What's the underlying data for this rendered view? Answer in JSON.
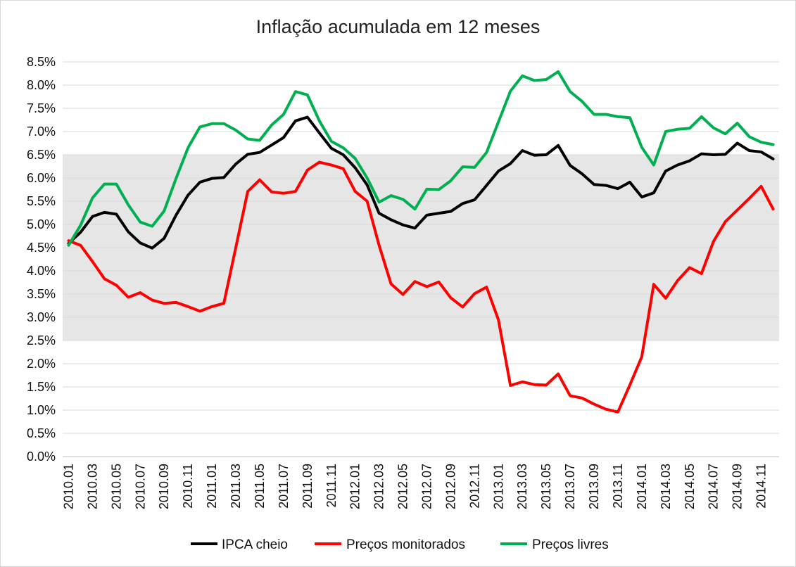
{
  "chart_data": {
    "type": "line",
    "title": "Inflação acumulada em 12 meses",
    "xlabel": "",
    "ylabel": "",
    "ylim": [
      0,
      8.5
    ],
    "y_ticks": [
      "0.0%",
      "0.5%",
      "1.0%",
      "1.5%",
      "2.0%",
      "2.5%",
      "3.0%",
      "3.5%",
      "4.0%",
      "4.5%",
      "5.0%",
      "5.5%",
      "6.0%",
      "6.5%",
      "7.0%",
      "7.5%",
      "8.0%",
      "8.5%"
    ],
    "shaded_band": {
      "from": 2.5,
      "to": 6.5,
      "color": "#e6e6e6"
    },
    "grid": "horizontal",
    "legend_position": "bottom",
    "x": [
      "2010.01",
      "2010.02",
      "2010.03",
      "2010.04",
      "2010.05",
      "2010.06",
      "2010.07",
      "2010.08",
      "2010.09",
      "2010.10",
      "2010.11",
      "2010.12",
      "2011.01",
      "2011.02",
      "2011.03",
      "2011.04",
      "2011.05",
      "2011.06",
      "2011.07",
      "2011.08",
      "2011.09",
      "2011.10",
      "2011.11",
      "2011.12",
      "2012.01",
      "2012.02",
      "2012.03",
      "2012.04",
      "2012.05",
      "2012.06",
      "2012.07",
      "2012.08",
      "2012.09",
      "2012.10",
      "2012.11",
      "2012.12",
      "2013.01",
      "2013.02",
      "2013.03",
      "2013.04",
      "2013.05",
      "2013.06",
      "2013.07",
      "2013.08",
      "2013.09",
      "2013.10",
      "2013.11",
      "2013.12",
      "2014.01",
      "2014.02",
      "2014.03",
      "2014.04",
      "2014.05",
      "2014.06",
      "2014.07",
      "2014.08",
      "2014.09",
      "2014.10",
      "2014.11",
      "2014.12"
    ],
    "x_tick_labels": [
      "2010.01",
      "2010.03",
      "2010.05",
      "2010.07",
      "2010.09",
      "2010.11",
      "2011.01",
      "2011.03",
      "2011.05",
      "2011.07",
      "2011.09",
      "2011.11",
      "2012.01",
      "2012.03",
      "2012.05",
      "2012.07",
      "2012.09",
      "2012.11",
      "2013.01",
      "2013.03",
      "2013.05",
      "2013.07",
      "2013.09",
      "2013.11",
      "2014.01",
      "2014.03",
      "2014.05",
      "2014.07",
      "2014.09",
      "2014.11"
    ],
    "series": [
      {
        "name": "IPCA cheio",
        "color": "#000000",
        "values": [
          4.59,
          4.83,
          5.17,
          5.26,
          5.22,
          4.84,
          4.6,
          4.49,
          4.7,
          5.2,
          5.63,
          5.91,
          5.99,
          6.01,
          6.3,
          6.51,
          6.55,
          6.71,
          6.87,
          7.23,
          7.31,
          6.97,
          6.64,
          6.5,
          6.22,
          5.85,
          5.24,
          5.1,
          4.99,
          4.92,
          5.2,
          5.24,
          5.28,
          5.45,
          5.53,
          5.84,
          6.15,
          6.31,
          6.59,
          6.49,
          6.5,
          6.7,
          6.27,
          6.09,
          5.86,
          5.84,
          5.77,
          5.91,
          5.59,
          5.68,
          6.15,
          6.28,
          6.37,
          6.52,
          6.5,
          6.51,
          6.75,
          6.59,
          6.56,
          6.41
        ]
      },
      {
        "name": "Preços monitorados",
        "color": "#ff0000",
        "values": [
          4.65,
          4.55,
          4.2,
          3.83,
          3.69,
          3.43,
          3.53,
          3.37,
          3.3,
          3.32,
          3.23,
          3.13,
          3.23,
          3.3,
          4.5,
          5.71,
          5.96,
          5.7,
          5.67,
          5.71,
          6.17,
          6.34,
          6.28,
          6.2,
          5.71,
          5.5,
          4.55,
          3.72,
          3.49,
          3.77,
          3.66,
          3.76,
          3.42,
          3.22,
          3.51,
          3.65,
          2.94,
          1.53,
          1.61,
          1.55,
          1.54,
          1.78,
          1.31,
          1.26,
          1.13,
          1.02,
          0.96,
          1.54,
          2.15,
          3.71,
          3.41,
          3.79,
          4.07,
          3.94,
          4.63,
          5.06,
          5.31,
          5.56,
          5.82,
          5.33
        ]
      },
      {
        "name": "Preços livres",
        "color": "#00b050",
        "values": [
          4.55,
          4.98,
          5.57,
          5.87,
          5.87,
          5.42,
          5.05,
          4.96,
          5.29,
          5.99,
          6.65,
          7.1,
          7.17,
          7.17,
          7.03,
          6.84,
          6.81,
          7.14,
          7.37,
          7.86,
          7.79,
          7.23,
          6.79,
          6.65,
          6.42,
          6.0,
          5.48,
          5.62,
          5.54,
          5.33,
          5.76,
          5.75,
          5.94,
          6.24,
          6.23,
          6.55,
          7.21,
          7.87,
          8.2,
          8.1,
          8.12,
          8.29,
          7.86,
          7.65,
          7.37,
          7.37,
          7.32,
          7.3,
          6.66,
          6.28,
          7.0,
          7.05,
          7.07,
          7.32,
          7.08,
          6.95,
          7.18,
          6.89,
          6.77,
          6.72
        ]
      }
    ]
  }
}
